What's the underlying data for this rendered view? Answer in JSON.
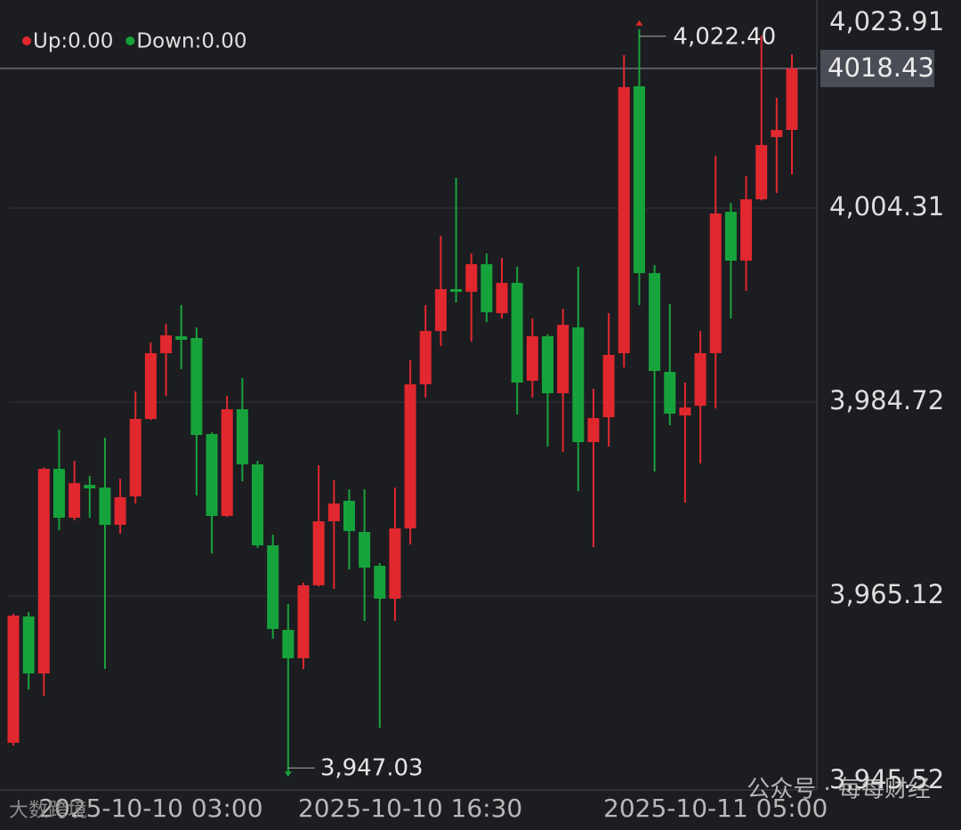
{
  "chart_data": {
    "type": "candlestick",
    "legend": [
      {
        "label": "Up:0.00",
        "color": "#e0282e"
      },
      {
        "label": "Down:0.00",
        "color": "#17a33b"
      }
    ],
    "up_color": "#e0282e",
    "down_color": "#17a33b",
    "categories": [
      null,
      null,
      null,
      null,
      null,
      null,
      null,
      null,
      null,
      "2025-10-10 03:00",
      null,
      null,
      null,
      null,
      null,
      null,
      null,
      null,
      null,
      null,
      null,
      null,
      null,
      null,
      null,
      null,
      "2025-10-10 16:30",
      null,
      null,
      null,
      null,
      null,
      null,
      null,
      null,
      null,
      null,
      null,
      null,
      null,
      null,
      null,
      null,
      null,
      null,
      null,
      "2025-10-11 05:00",
      null,
      null,
      null,
      null,
      null
    ],
    "open": [
      3950.29,
      3963.05,
      3957.3,
      3977.97,
      3973.03,
      3976.35,
      3976.08,
      3972.31,
      3975.19,
      3983.01,
      3989.66,
      3991.37,
      3991.19,
      3981.48,
      3973.21,
      3983.99,
      3978.42,
      3970.24,
      3961.7,
      3958.83,
      3966.2,
      3972.67,
      3974.74,
      3971.59,
      3968.17,
      3964.85,
      3971.95,
      3986.51,
      3991.9,
      3996.13,
      3995.86,
      3998.65,
      3993.7,
      3996.76,
      3986.87,
      3991.37,
      3985.61,
      3992.26,
      3980.67,
      3983.19,
      3989.66,
      4016.63,
      3997.75,
      3987.77,
      3983.37,
      3984.35,
      3989.66,
      4003.95,
      3999.01,
      4005.21,
      4011.5,
      4012.22
    ],
    "high": [
      3963.32,
      3963.5,
      3978.1,
      3981.93,
      3978.78,
      3977.25,
      3981.12,
      3976.98,
      3985.79,
      3990.74,
      3992.62,
      3994.51,
      3992.26,
      3981.66,
      3985.34,
      3987.14,
      3978.78,
      3971.32,
      3964.31,
      3966.47,
      3978.33,
      3976.8,
      3975.9,
      3975.9,
      3968.44,
      3976.08,
      3988.94,
      3994.51,
      4001.52,
      4007.37,
      3999.73,
      3999.73,
      3999.28,
      3998.38,
      3993.16,
      3991.55,
      3994.15,
      3998.38,
      3986.06,
      3993.7,
      4019.77,
      4022.4,
      3998.56,
      3994.6,
      3986.69,
      3991.9,
      4009.61,
      4004.85,
      4007.55,
      4021.75,
      4015.46,
      4019.86
    ],
    "low": [
      3950.02,
      3955.68,
      3955.05,
      3971.77,
      3972.76,
      3973.03,
      3957.75,
      3971.41,
      3974.47,
      3982.9,
      3985.34,
      3988.04,
      3975.28,
      3969.43,
      3973.1,
      3976.71,
      3969.97,
      3960.8,
      3947.03,
      3957.75,
      3966.1,
      3965.84,
      3967.81,
      3962.6,
      3951.81,
      3962.6,
      3970.33,
      3985.16,
      3990.38,
      3994.78,
      3990.83,
      3992.8,
      3993.16,
      3983.46,
      3985.16,
      3980.22,
      3979.68,
      3975.72,
      3970.06,
      3980.22,
      3988.22,
      3994.51,
      3977.7,
      3982.38,
      3974.56,
      3978.51,
      3984.08,
      3993.16,
      3995.95,
      4005.1,
      4005.84,
      4007.73
    ],
    "close": [
      3963.14,
      3957.3,
      3977.97,
      3973.03,
      3976.53,
      3975.99,
      3972.31,
      3975.1,
      3983.01,
      3989.66,
      3991.46,
      3991.01,
      3981.39,
      3973.21,
      3983.99,
      3978.42,
      3970.24,
      3961.79,
      3958.83,
      3966.2,
      3972.67,
      3974.47,
      3971.68,
      3967.99,
      3964.85,
      3971.95,
      3986.51,
      3991.9,
      3996.13,
      3995.86,
      3998.65,
      3993.79,
      3996.76,
      3986.69,
      3991.37,
      3985.61,
      3992.53,
      3980.67,
      3983.1,
      3989.48,
      4016.54,
      3997.75,
      3987.86,
      3983.55,
      3984.17,
      3989.66,
      4003.77,
      3999.01,
      4005.21,
      4010.69,
      4012.22,
      4018.43
    ],
    "ylim": [
      3945.52,
      4023.91
    ],
    "yticks": [
      {
        "value": 3945.52,
        "label": "3,945.52"
      },
      {
        "value": 3965.12,
        "label": "3,965.12"
      },
      {
        "value": 3984.72,
        "label": "3,984.72"
      },
      {
        "value": 4004.31,
        "label": "4,004.31"
      },
      {
        "value": 4023.91,
        "label": "4,023.91"
      }
    ],
    "grid": true,
    "last_price": 4018.43,
    "high_label": "4,022.40",
    "low_label": "3,947.03"
  },
  "watermarks": [
    "大数跨境",
    "公众号 · 每每财经"
  ]
}
